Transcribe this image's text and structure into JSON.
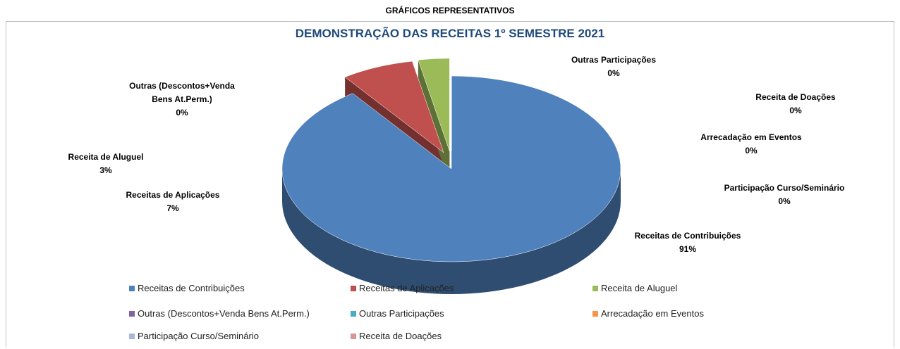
{
  "heading": "GRÁFICOS REPRESENTATIVOS",
  "chart_data": {
    "type": "pie",
    "title": "DEMONSTRAÇÃO DAS RECEITAS 1º SEMESTRE 2021",
    "categories": [
      "Receitas de Contribuições",
      "Receitas de Aplicações",
      "Receita de Aluguel",
      "Outras (Descontos+Venda Bens At.Perm.)",
      "Outras Participações",
      "Arrecadação em Eventos",
      "Participação Curso/Seminário",
      "Receita de Doações"
    ],
    "values": [
      91,
      7,
      3,
      0,
      0,
      0,
      0,
      0
    ],
    "value_labels": [
      "91%",
      "7%",
      "3%",
      "0%",
      "0%",
      "0%",
      "0%",
      "0%"
    ],
    "colors": [
      "#4f81bd",
      "#c0504d",
      "#9bbb59",
      "#8064a2",
      "#4bacc6",
      "#f79646",
      "#a6b8d9",
      "#d99694"
    ],
    "legend": "bottom"
  }
}
